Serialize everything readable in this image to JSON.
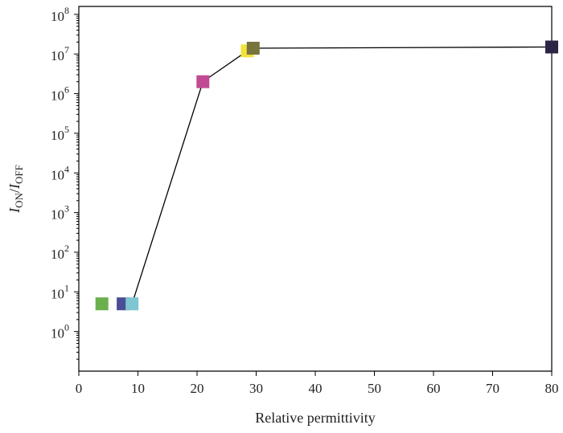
{
  "chart_data": {
    "type": "scatter",
    "title": "",
    "xlabel": "Relative permittivity",
    "ylabel": {
      "base": "I",
      "num_sub": "ON",
      "sep": "/",
      "den": "I",
      "den_sub": "OFF"
    },
    "xlim": [
      0,
      80
    ],
    "ylim_log10": [
      -1,
      8.2
    ],
    "log_y": true,
    "grid": false,
    "legend": "none",
    "x_ticks": [
      0,
      10,
      20,
      30,
      40,
      50,
      60,
      70,
      80
    ],
    "y_tick_exponents": [
      0,
      1,
      2,
      3,
      4,
      5,
      6,
      7,
      8
    ],
    "y_tick_base": "10",
    "points": [
      {
        "x": 3.9,
        "y": 5,
        "color": "#6ab04c"
      },
      {
        "x": 7.5,
        "y": 5,
        "color": "#4b4d95"
      },
      {
        "x": 9,
        "y": 5,
        "color": "#7ec6d2"
      },
      {
        "x": 21,
        "y": 2000000,
        "color": "#c04b94"
      },
      {
        "x": 28.5,
        "y": 12000000,
        "color": "#f2e23a"
      },
      {
        "x": 29.5,
        "y": 14000000,
        "color": "#77743c"
      },
      {
        "x": 80,
        "y": 15000000,
        "color": "#2c2544"
      }
    ],
    "line": [
      {
        "x": 9,
        "y": 5
      },
      {
        "x": 21,
        "y": 2000000
      },
      {
        "x": 28.5,
        "y": 12000000
      },
      {
        "x": 29.5,
        "y": 14000000
      },
      {
        "x": 80,
        "y": 15000000
      }
    ]
  }
}
